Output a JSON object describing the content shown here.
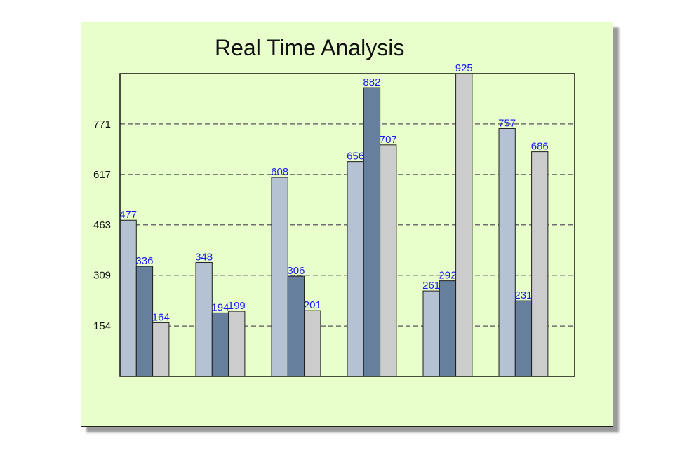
{
  "chart_data": {
    "type": "bar",
    "title": "Real Time Analysis",
    "xlabel": "",
    "ylabel": "",
    "ylim": [
      0,
      925
    ],
    "yticks": [
      154,
      309,
      463,
      617,
      771
    ],
    "grid": true,
    "grid_style": "dashed",
    "categories": [
      "",
      "",
      "",
      "",
      "",
      ""
    ],
    "series": [
      {
        "color": "#b4c2d3",
        "values": [
          477,
          348,
          608,
          656,
          261,
          757
        ]
      },
      {
        "color": "#657f9c",
        "values": [
          336,
          194,
          306,
          882,
          292,
          231
        ]
      },
      {
        "color": "#cccccc",
        "values": [
          164,
          199,
          201,
          707,
          925,
          686
        ]
      }
    ],
    "data_label_color": "#1a1aff",
    "background": "#e8ffcc"
  }
}
